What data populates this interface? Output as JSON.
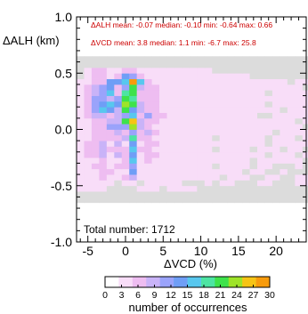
{
  "chart_data": {
    "type": "heatmap",
    "xlabel": "ΔVCD (%)",
    "ylabel": "ΔALH (km)",
    "xlim": [
      -6.5,
      24
    ],
    "ylim": [
      -1.0,
      1.0
    ],
    "x_ticks": [
      -5,
      0,
      5,
      10,
      15,
      20
    ],
    "y_ticks": [
      "1.0",
      "0.5",
      "0.0",
      "-0.5",
      "-1.0"
    ],
    "grid": false,
    "annotations": {
      "alh_stats": "ΔALH mean: -0.07 median: -0.10 min: -0.64 max: 0.66",
      "vcd_stats": "ΔVCD mean: 3.8 median: 1.1 min: -6.7 max: 25.8",
      "total": "Total number: 1712"
    },
    "colorbar": {
      "label": "number of occurrences",
      "min": 0,
      "max": 30,
      "ticks": [
        "0",
        "3",
        "6",
        "9",
        "12",
        "15",
        "18",
        "21",
        "24",
        "27",
        "30"
      ],
      "colors": [
        "#ffffff",
        "#f8ddf8",
        "#eebdf1",
        "#c9b3f8",
        "#9aa3fb",
        "#6f9ef6",
        "#58c7ee",
        "#4de4a3",
        "#3ee24b",
        "#9ee328",
        "#f6c415",
        "#f79b0c"
      ]
    },
    "bins": {
      "x_start": -6.5,
      "x_width": 1.0,
      "y_start": -0.65,
      "y_width": 0.05
    },
    "nodata_color": "#dcdcdc",
    "grid_rows": [
      "0000000000000000000000000000000",
      "0000000000000000000000000000000",
      "1111000011101111000000000000000",
      "1111101101111100010110001100011",
      "1112112311111111111011100110011",
      "1112211511111111111111011001000",
      "1122122411111111110111101100010",
      "1112112612111111111111101111110",
      "1223132512211111111111111011101",
      "1223222622111111110111101110110",
      "1223131512211111111111111011111",
      "1122223722111111110111111011101",
      "1122232423211111111111111101111",
      "1122444932111111111111111111110",
      "1122338A32211111111111111111101",
      "1233234624221111111111110011111",
      "1246538532211111111111111110111",
      "1245659832211111111111111011111",
      "1244348722211111111111111111111",
      "1234627822211111111111111011111",
      "1234524832211111111111111111110",
      "1122556B62111111111111111111011",
      "0122125421111111111111100000000",
      "0122112211111111110000000000000",
      "0000000000000000000000000000000",
      "0000000000000000000000000000000"
    ]
  }
}
